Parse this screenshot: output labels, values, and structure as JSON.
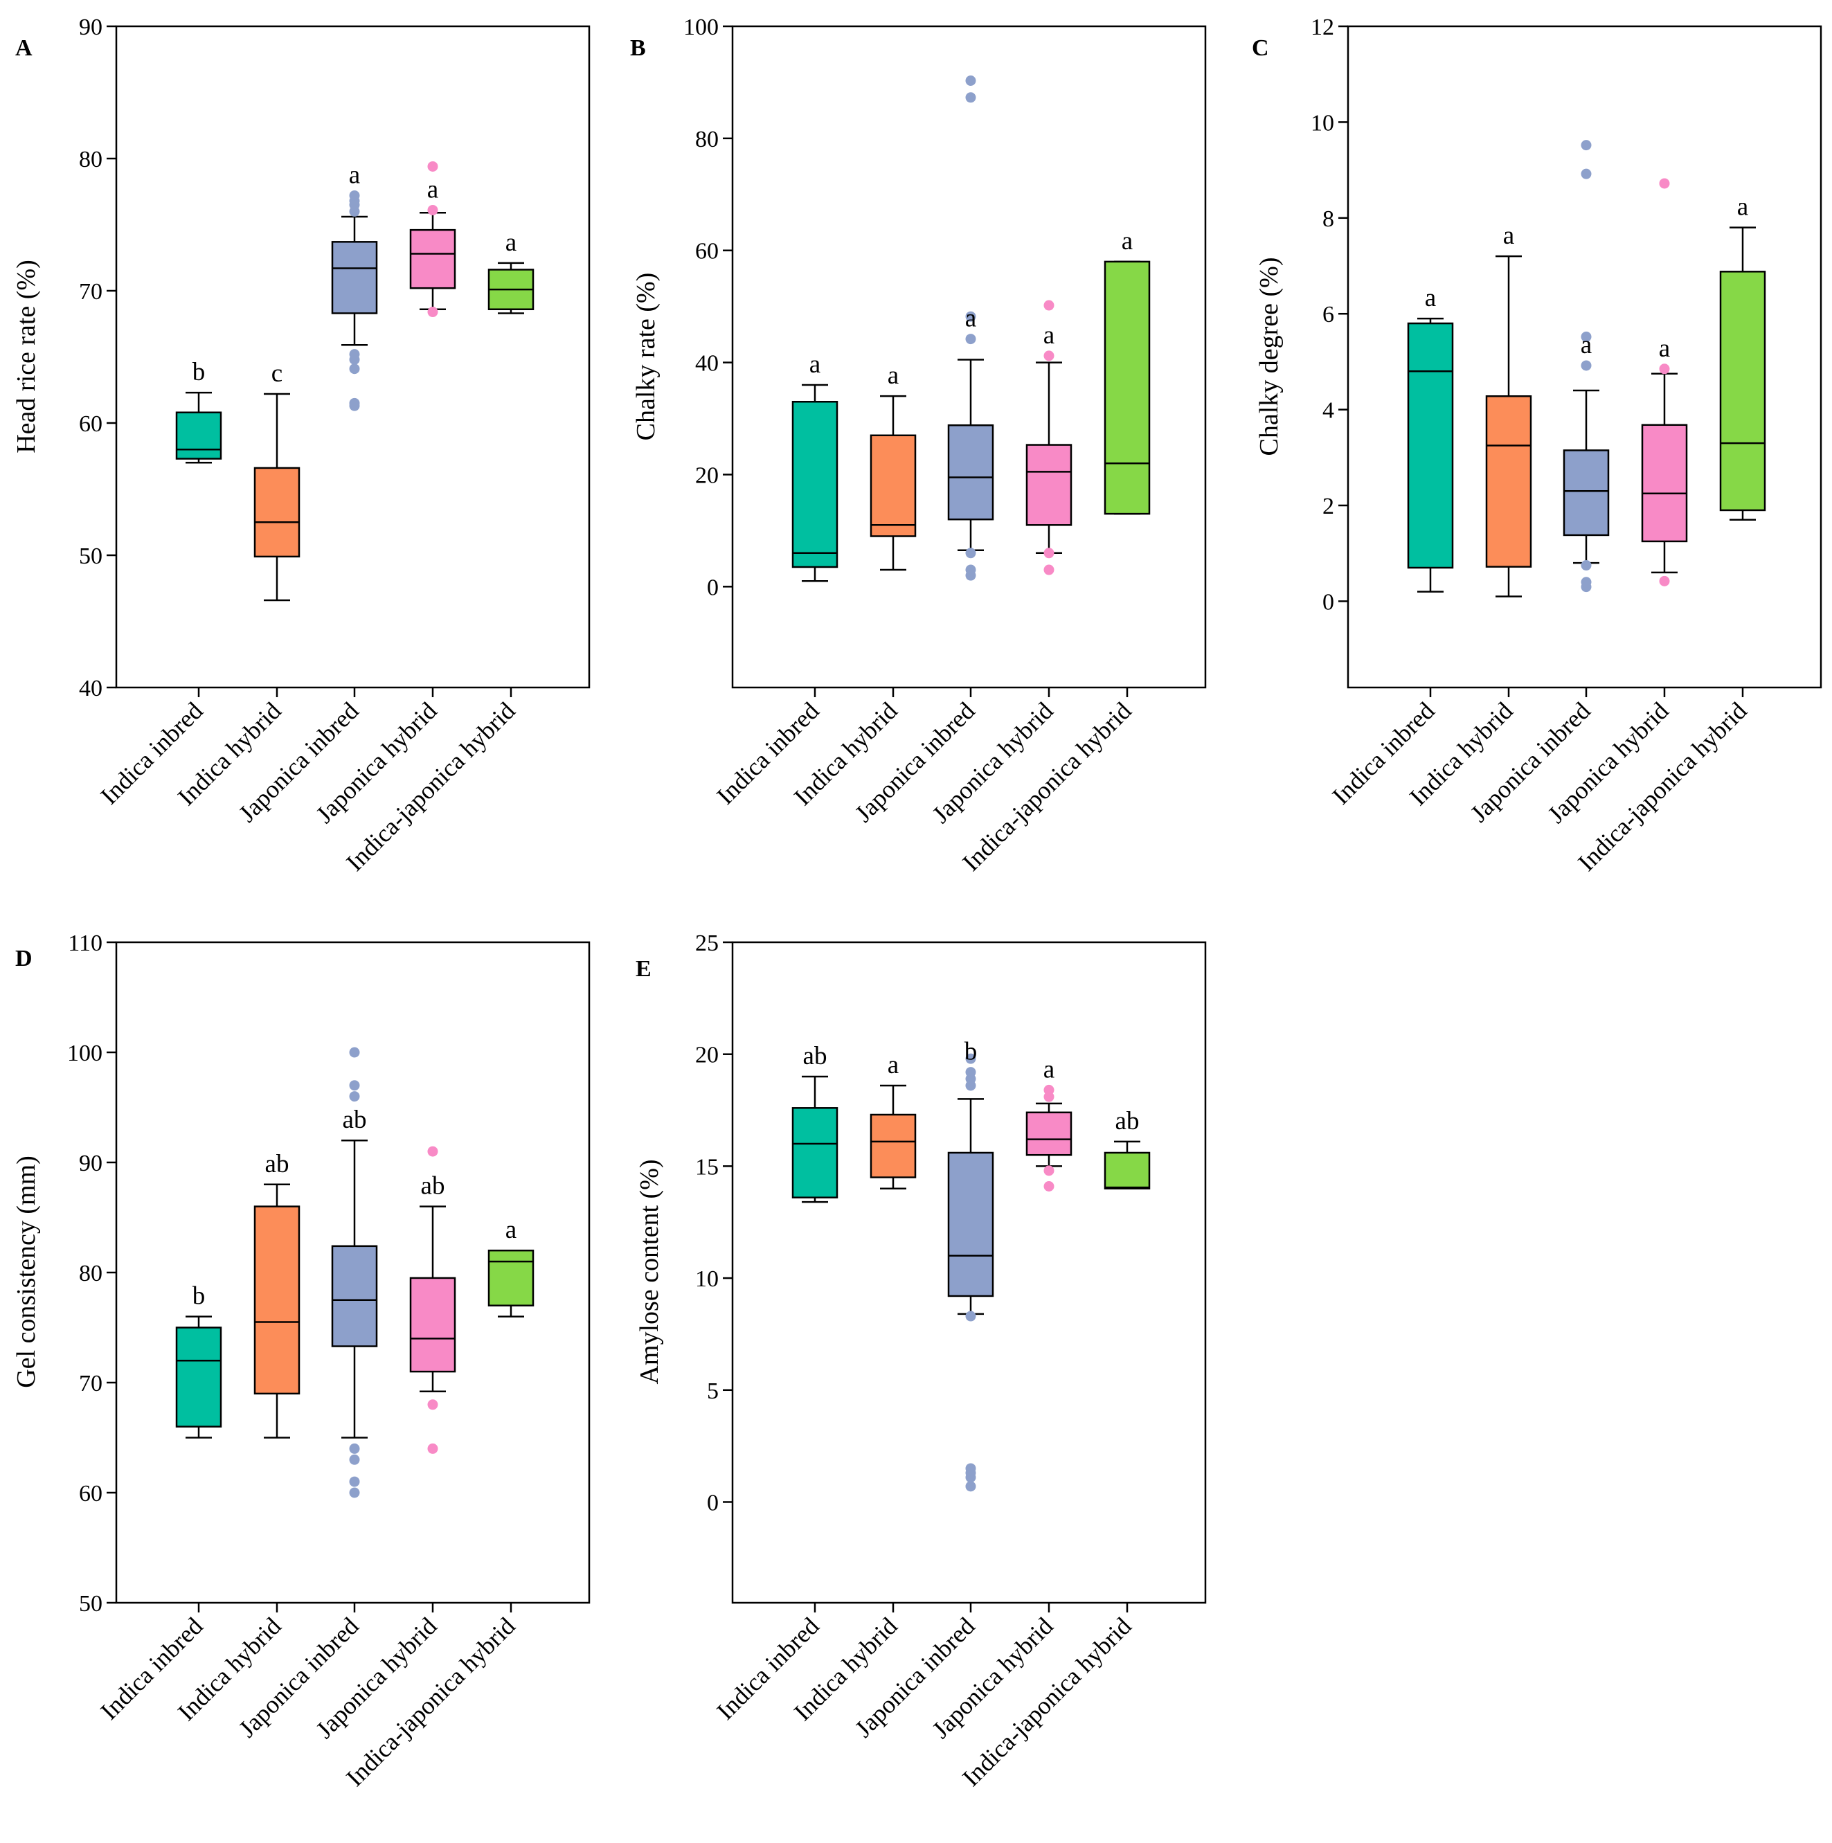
{
  "colors": {
    "indica_inbred": "#00bfa0",
    "indica_hybrid": "#fc8d59",
    "japonica_inbred": "#8da0cb",
    "japonica_hybrid": "#f88ac6",
    "indica_japonica_hybrid": "#86d847",
    "axis": "#000000"
  },
  "chart_data": [
    {
      "type": "box",
      "panel": "A",
      "ylabel": "Head rice rate (%)",
      "ylim": [
        40,
        90
      ],
      "yticks": [
        40,
        50,
        60,
        70,
        80,
        90
      ],
      "categories": [
        "Indica inbred",
        "Indica hybrid",
        "Japonica inbred",
        "Japonica hybrid",
        "Indica-japonica hybrid"
      ],
      "boxes": [
        {
          "min": 57.0,
          "q1": 57.3,
          "median": 58.0,
          "q3": 60.8,
          "max": 62.3,
          "outliers": [],
          "sig": "b"
        },
        {
          "min": 46.6,
          "q1": 49.9,
          "median": 52.5,
          "q3": 56.6,
          "max": 62.2,
          "outliers": [],
          "sig": "c"
        },
        {
          "min": 65.9,
          "q1": 68.3,
          "median": 71.7,
          "q3": 73.7,
          "max": 75.6,
          "outliers": [
            61.3,
            61.5,
            64.1,
            64.8,
            65.2,
            76.0,
            76.5,
            76.8,
            77.2
          ],
          "sig": "a"
        },
        {
          "min": 68.6,
          "q1": 70.2,
          "median": 72.8,
          "q3": 74.6,
          "max": 75.9,
          "outliers": [
            68.4,
            76.1,
            79.4
          ],
          "sig": "a"
        },
        {
          "min": 68.3,
          "q1": 68.6,
          "median": 70.1,
          "q3": 71.6,
          "max": 72.1,
          "outliers": [],
          "sig": "a"
        }
      ]
    },
    {
      "type": "box",
      "panel": "B",
      "ylabel": "Chalky rate (%)",
      "ylim": [
        -18,
        100
      ],
      "yticks": [
        0,
        20,
        40,
        60,
        80,
        100
      ],
      "categories": [
        "Indica inbred",
        "Indica hybrid",
        "Japonica inbred",
        "Japonica hybrid",
        "Indica-japonica hybrid"
      ],
      "boxes": [
        {
          "min": 1,
          "q1": 3.5,
          "median": 6,
          "q3": 33,
          "max": 36,
          "outliers": [],
          "sig": "a"
        },
        {
          "min": 3,
          "q1": 9,
          "median": 11,
          "q3": 27,
          "max": 34,
          "outliers": [],
          "sig": "a"
        },
        {
          "min": 6.5,
          "q1": 12,
          "median": 19.5,
          "q3": 28.8,
          "max": 40.5,
          "outliers": [
            2,
            3,
            6,
            44.2,
            48.2,
            87.3,
            90.3
          ],
          "sig": "a"
        },
        {
          "min": 6,
          "q1": 11,
          "median": 20.5,
          "q3": 25.3,
          "max": 40,
          "outliers": [
            3,
            6,
            41.2,
            50.2
          ],
          "sig": "a"
        },
        {
          "min": 13,
          "q1": 13,
          "median": 22,
          "q3": 58,
          "max": 58,
          "outliers": [],
          "sig": "a"
        }
      ]
    },
    {
      "type": "box",
      "panel": "C",
      "ylabel": "Chalky degree (%)",
      "ylim": [
        -1.8,
        12
      ],
      "yticks": [
        0,
        2,
        4,
        6,
        8,
        10,
        12
      ],
      "categories": [
        "Indica inbred",
        "Indica hybrid",
        "Japonica inbred",
        "Japonica hybrid",
        "Indica-japonica hybrid"
      ],
      "boxes": [
        {
          "min": 0.2,
          "q1": 0.7,
          "median": 4.8,
          "q3": 5.8,
          "max": 5.9,
          "outliers": [],
          "sig": "a"
        },
        {
          "min": 0.1,
          "q1": 0.72,
          "median": 3.25,
          "q3": 4.28,
          "max": 7.2,
          "outliers": [],
          "sig": "a"
        },
        {
          "min": 0.8,
          "q1": 1.38,
          "median": 2.3,
          "q3": 3.15,
          "max": 4.4,
          "outliers": [
            0.3,
            0.4,
            0.75,
            4.92,
            5.52,
            8.92,
            9.52
          ],
          "sig": "a"
        },
        {
          "min": 0.6,
          "q1": 1.25,
          "median": 2.25,
          "q3": 3.68,
          "max": 4.75,
          "outliers": [
            0.42,
            4.85,
            8.72
          ],
          "sig": "a"
        },
        {
          "min": 1.7,
          "q1": 1.9,
          "median": 3.3,
          "q3": 6.88,
          "max": 7.8,
          "outliers": [],
          "sig": "a"
        }
      ]
    },
    {
      "type": "box",
      "panel": "D",
      "ylabel": "Gel consistency (mm)",
      "ylim": [
        50,
        110
      ],
      "yticks": [
        50,
        60,
        70,
        80,
        90,
        100,
        110
      ],
      "categories": [
        "Indica inbred",
        "Indica hybrid",
        "Japonica inbred",
        "Japonica hybrid",
        "Indica-japonica hybrid"
      ],
      "boxes": [
        {
          "min": 65,
          "q1": 66,
          "median": 72,
          "q3": 75,
          "max": 76,
          "outliers": [],
          "sig": "b"
        },
        {
          "min": 65,
          "q1": 69,
          "median": 75.5,
          "q3": 86,
          "max": 88,
          "outliers": [],
          "sig": "ab"
        },
        {
          "min": 65,
          "q1": 73.3,
          "median": 77.5,
          "q3": 82.4,
          "max": 92,
          "outliers": [
            60,
            61,
            63,
            64,
            96,
            97,
            100
          ],
          "sig": "ab"
        },
        {
          "min": 69.2,
          "q1": 71,
          "median": 74,
          "q3": 79.5,
          "max": 86,
          "outliers": [
            64,
            68,
            91
          ],
          "sig": "ab"
        },
        {
          "min": 76,
          "q1": 77,
          "median": 81,
          "q3": 82,
          "max": 82,
          "outliers": [],
          "sig": "a"
        }
      ]
    },
    {
      "type": "box",
      "panel": "E",
      "ylabel": "Amylose content (%)",
      "ylim": [
        -4.5,
        25
      ],
      "yticks": [
        0,
        5,
        10,
        15,
        20,
        25
      ],
      "categories": [
        "Indica inbred",
        "Indica hybrid",
        "Japonica inbred",
        "Japonica hybrid",
        "Indica-japonica hybrid"
      ],
      "boxes": [
        {
          "min": 13.4,
          "q1": 13.6,
          "median": 16,
          "q3": 17.6,
          "max": 19,
          "outliers": [],
          "sig": "ab"
        },
        {
          "min": 14,
          "q1": 14.5,
          "median": 16.1,
          "q3": 17.3,
          "max": 18.6,
          "outliers": [],
          "sig": "a"
        },
        {
          "min": 8.4,
          "q1": 9.2,
          "median": 11,
          "q3": 15.6,
          "max": 18,
          "outliers": [
            0.7,
            1.1,
            1.3,
            1.5,
            8.3,
            18.6,
            18.9,
            19.2,
            19.8
          ],
          "sig": "b"
        },
        {
          "min": 15,
          "q1": 15.5,
          "median": 16.2,
          "q3": 17.4,
          "max": 17.8,
          "outliers": [
            14.1,
            14.8,
            18.1,
            18.4
          ],
          "sig": "a"
        },
        {
          "min": 14,
          "q1": 14,
          "median": 14.05,
          "q3": 15.6,
          "max": 16.1,
          "outliers": [],
          "sig": "ab"
        }
      ]
    }
  ]
}
